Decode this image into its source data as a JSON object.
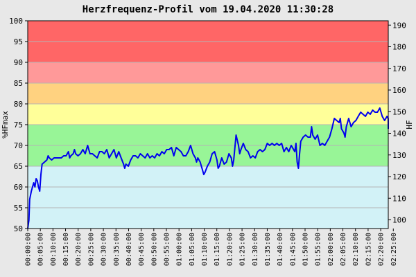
{
  "chart_data": {
    "type": "line",
    "title": "Herzfrequenz-Profil vom 19.04.2020 11:30:28",
    "ylabel_left": "%HFmax",
    "ylabel_right": "HF",
    "ylim_left": [
      50,
      100
    ],
    "ylim_right": [
      96,
      192
    ],
    "yticks_left": [
      50,
      55,
      60,
      65,
      70,
      75,
      80,
      85,
      90,
      95,
      100
    ],
    "yticks_right": [
      100,
      110,
      120,
      130,
      140,
      150,
      160,
      170,
      180,
      190
    ],
    "xlim_minutes": [
      0,
      143
    ],
    "xticks": [
      "00:00:00",
      "00:05:00",
      "00:10:00",
      "00:15:00",
      "00:20:00",
      "00:25:00",
      "00:30:00",
      "00:35:00",
      "00:40:00",
      "00:45:00",
      "00:50:00",
      "00:55:00",
      "01:00:00",
      "01:05:00",
      "01:10:00",
      "01:15:00",
      "01:20:00",
      "01:25:00",
      "01:30:00",
      "01:35:00",
      "01:40:00",
      "01:45:00",
      "01:50:00",
      "01:55:00",
      "02:00:00",
      "02:05:00",
      "02:10:00",
      "02:15:00",
      "02:20:00",
      "02:25:00"
    ],
    "grid": true,
    "zones": [
      {
        "from": 50,
        "to": 65,
        "color": "#d2f2f7"
      },
      {
        "from": 65,
        "to": 75,
        "color": "#98f597"
      },
      {
        "from": 75,
        "to": 80,
        "color": "#ffff99"
      },
      {
        "from": 80,
        "to": 85,
        "color": "#ffd280"
      },
      {
        "from": 85,
        "to": 90,
        "color": "#ff9999"
      },
      {
        "from": 90,
        "to": 100,
        "color": "#ff6666"
      }
    ],
    "series": [
      {
        "color": "#0000ee",
        "points": [
          [
            0,
            50
          ],
          [
            0.5,
            52
          ],
          [
            0.8,
            57
          ],
          [
            1.5,
            59
          ],
          [
            2,
            60
          ],
          [
            2.5,
            61
          ],
          [
            3,
            60
          ],
          [
            3.5,
            62
          ],
          [
            4,
            61.5
          ],
          [
            4.5,
            60
          ],
          [
            5,
            59
          ],
          [
            5.5,
            63
          ],
          [
            6,
            65.5
          ],
          [
            7,
            66
          ],
          [
            8,
            66.5
          ],
          [
            8.5,
            67.5
          ],
          [
            9,
            67
          ],
          [
            10,
            66.5
          ],
          [
            11,
            67
          ],
          [
            12,
            67
          ],
          [
            13,
            67
          ],
          [
            14,
            67
          ],
          [
            15,
            67.5
          ],
          [
            16,
            67.5
          ],
          [
            17,
            68.5
          ],
          [
            17.5,
            67
          ],
          [
            18,
            67.5
          ],
          [
            19,
            68
          ],
          [
            19.5,
            69
          ],
          [
            20,
            68
          ],
          [
            21,
            67.5
          ],
          [
            22,
            68
          ],
          [
            23,
            69
          ],
          [
            24,
            68
          ],
          [
            25,
            70
          ],
          [
            26,
            68
          ],
          [
            27,
            68
          ],
          [
            28,
            67.5
          ],
          [
            29,
            67
          ],
          [
            30,
            68.5
          ],
          [
            31,
            68.5
          ],
          [
            32,
            68
          ],
          [
            33,
            69
          ],
          [
            34,
            67
          ],
          [
            35,
            68
          ],
          [
            36,
            69
          ],
          [
            37,
            67
          ],
          [
            38,
            68.5
          ],
          [
            39,
            67
          ],
          [
            40,
            65.5
          ],
          [
            40.5,
            64.5
          ],
          [
            41,
            65.5
          ],
          [
            42,
            65
          ],
          [
            43,
            66.5
          ],
          [
            44,
            67.5
          ],
          [
            45,
            67.5
          ],
          [
            46,
            67
          ],
          [
            47,
            68
          ],
          [
            48,
            67.5
          ],
          [
            49,
            67
          ],
          [
            50,
            68
          ],
          [
            51,
            67
          ],
          [
            52,
            67.5
          ],
          [
            53,
            67
          ],
          [
            54,
            68
          ],
          [
            55,
            67.5
          ],
          [
            56,
            68.5
          ],
          [
            57,
            68
          ],
          [
            58,
            69
          ],
          [
            59,
            69
          ],
          [
            60,
            69.5
          ],
          [
            61,
            67.5
          ],
          [
            62,
            69.5
          ],
          [
            63,
            69
          ],
          [
            64,
            68.5
          ],
          [
            65,
            67.5
          ],
          [
            66,
            67.5
          ],
          [
            67,
            68.5
          ],
          [
            68,
            70
          ],
          [
            69,
            68
          ],
          [
            70,
            67
          ],
          [
            70.5,
            66
          ],
          [
            71,
            67
          ],
          [
            72,
            66
          ],
          [
            73,
            64
          ],
          [
            73.5,
            63
          ],
          [
            74,
            63.5
          ],
          [
            75,
            65
          ],
          [
            76,
            66
          ],
          [
            77,
            68
          ],
          [
            78,
            68.5
          ],
          [
            79,
            66.5
          ],
          [
            79.5,
            64.5
          ],
          [
            80,
            65
          ],
          [
            81,
            67
          ],
          [
            82,
            65.5
          ],
          [
            83,
            66
          ],
          [
            84,
            68
          ],
          [
            85,
            67
          ],
          [
            85.5,
            65
          ],
          [
            86,
            66.5
          ],
          [
            87,
            72.5
          ],
          [
            88,
            70
          ],
          [
            88.5,
            68
          ],
          [
            89,
            69
          ],
          [
            90,
            70.5
          ],
          [
            91,
            69
          ],
          [
            92,
            68.5
          ],
          [
            93,
            67
          ],
          [
            94,
            67.5
          ],
          [
            95,
            67
          ],
          [
            96,
            68.5
          ],
          [
            97,
            69
          ],
          [
            98,
            68.5
          ],
          [
            99,
            69
          ],
          [
            100,
            70.5
          ],
          [
            101,
            70
          ],
          [
            102,
            70.5
          ],
          [
            103,
            70
          ],
          [
            104,
            70.5
          ],
          [
            105,
            70
          ],
          [
            106,
            70.5
          ],
          [
            107,
            68.5
          ],
          [
            108,
            69.5
          ],
          [
            109,
            68.5
          ],
          [
            110,
            70
          ],
          [
            111,
            69
          ],
          [
            111.5,
            68.5
          ],
          [
            112,
            70.5
          ],
          [
            112.5,
            66
          ],
          [
            113,
            64.5
          ],
          [
            113.5,
            68
          ],
          [
            114,
            71
          ],
          [
            115,
            72
          ],
          [
            116,
            72.5
          ],
          [
            117,
            72
          ],
          [
            118,
            72
          ],
          [
            118.5,
            74.5
          ],
          [
            119,
            72.5
          ],
          [
            120,
            71.5
          ],
          [
            121,
            72.5
          ],
          [
            122,
            70
          ],
          [
            123,
            70.5
          ],
          [
            124,
            70
          ],
          [
            125,
            71
          ],
          [
            126,
            72
          ],
          [
            127,
            74
          ],
          [
            128,
            76.5
          ],
          [
            129,
            76
          ],
          [
            130,
            75.5
          ],
          [
            130.5,
            76.5
          ],
          [
            131,
            74
          ],
          [
            132,
            73
          ],
          [
            132.5,
            72
          ],
          [
            133,
            74.5
          ],
          [
            134,
            76.5
          ],
          [
            135,
            74.5
          ],
          [
            136,
            75.5
          ],
          [
            137,
            76
          ],
          [
            138,
            77
          ],
          [
            139,
            78
          ],
          [
            140,
            77.5
          ],
          [
            141,
            77
          ],
          [
            142,
            78
          ],
          [
            143,
            77.5
          ],
          [
            144,
            78.5
          ],
          [
            145,
            78
          ],
          [
            146,
            78
          ],
          [
            147,
            79
          ],
          [
            148,
            77
          ],
          [
            149,
            76
          ],
          [
            150,
            77
          ],
          [
            150.5,
            76.5
          ],
          [
            151,
            74
          ]
        ]
      }
    ]
  }
}
